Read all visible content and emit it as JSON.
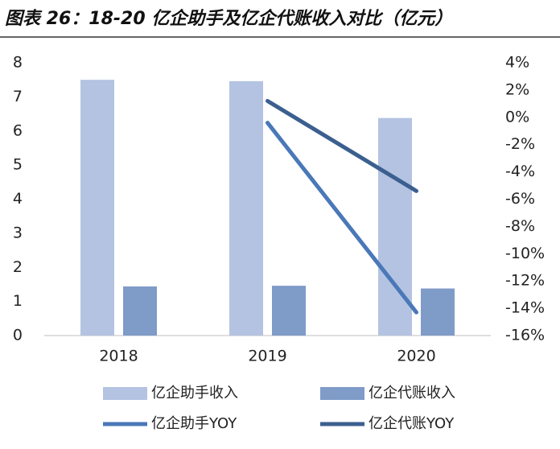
{
  "chart_data": {
    "type": "bar_line",
    "title": "图表 26：18-20 亿企助手及亿企代账收入对比（亿元）",
    "categories": [
      "2018",
      "2019",
      "2020"
    ],
    "ylim": [
      0,
      8
    ],
    "yticks": [
      0,
      1,
      2,
      3,
      4,
      5,
      6,
      7,
      8
    ],
    "y2lim": [
      -16,
      4
    ],
    "y2ticks": [
      {
        "value": 4,
        "label": "4%"
      },
      {
        "value": 2,
        "label": "2%"
      },
      {
        "value": 0,
        "label": "0%"
      },
      {
        "value": -2,
        "label": "-2%"
      },
      {
        "value": -4,
        "label": "-4%"
      },
      {
        "value": -6,
        "label": "-6%"
      },
      {
        "value": -8,
        "label": "-8%"
      },
      {
        "value": -10,
        "label": "-10%"
      },
      {
        "value": -12,
        "label": "-12%"
      },
      {
        "value": -14,
        "label": "-14%"
      },
      {
        "value": -16,
        "label": "-16%"
      }
    ],
    "grid": false,
    "series": [
      {
        "name": "亿企助手收入",
        "kind": "bar",
        "color": "#b4c3e1",
        "values": [
          7.5,
          7.46,
          6.38
        ]
      },
      {
        "name": "亿企代账收入",
        "kind": "bar",
        "color": "#7f9bc8",
        "values": [
          1.44,
          1.46,
          1.38
        ]
      },
      {
        "name": "亿企助手YOY",
        "kind": "line",
        "axis": "y2",
        "color": "#4a78b8",
        "values": [
          null,
          -0.4,
          -14.3
        ]
      },
      {
        "name": "亿企代账YOY",
        "kind": "line",
        "axis": "y2",
        "color": "#3b5f8f",
        "values": [
          null,
          1.2,
          -5.4
        ]
      }
    ]
  }
}
